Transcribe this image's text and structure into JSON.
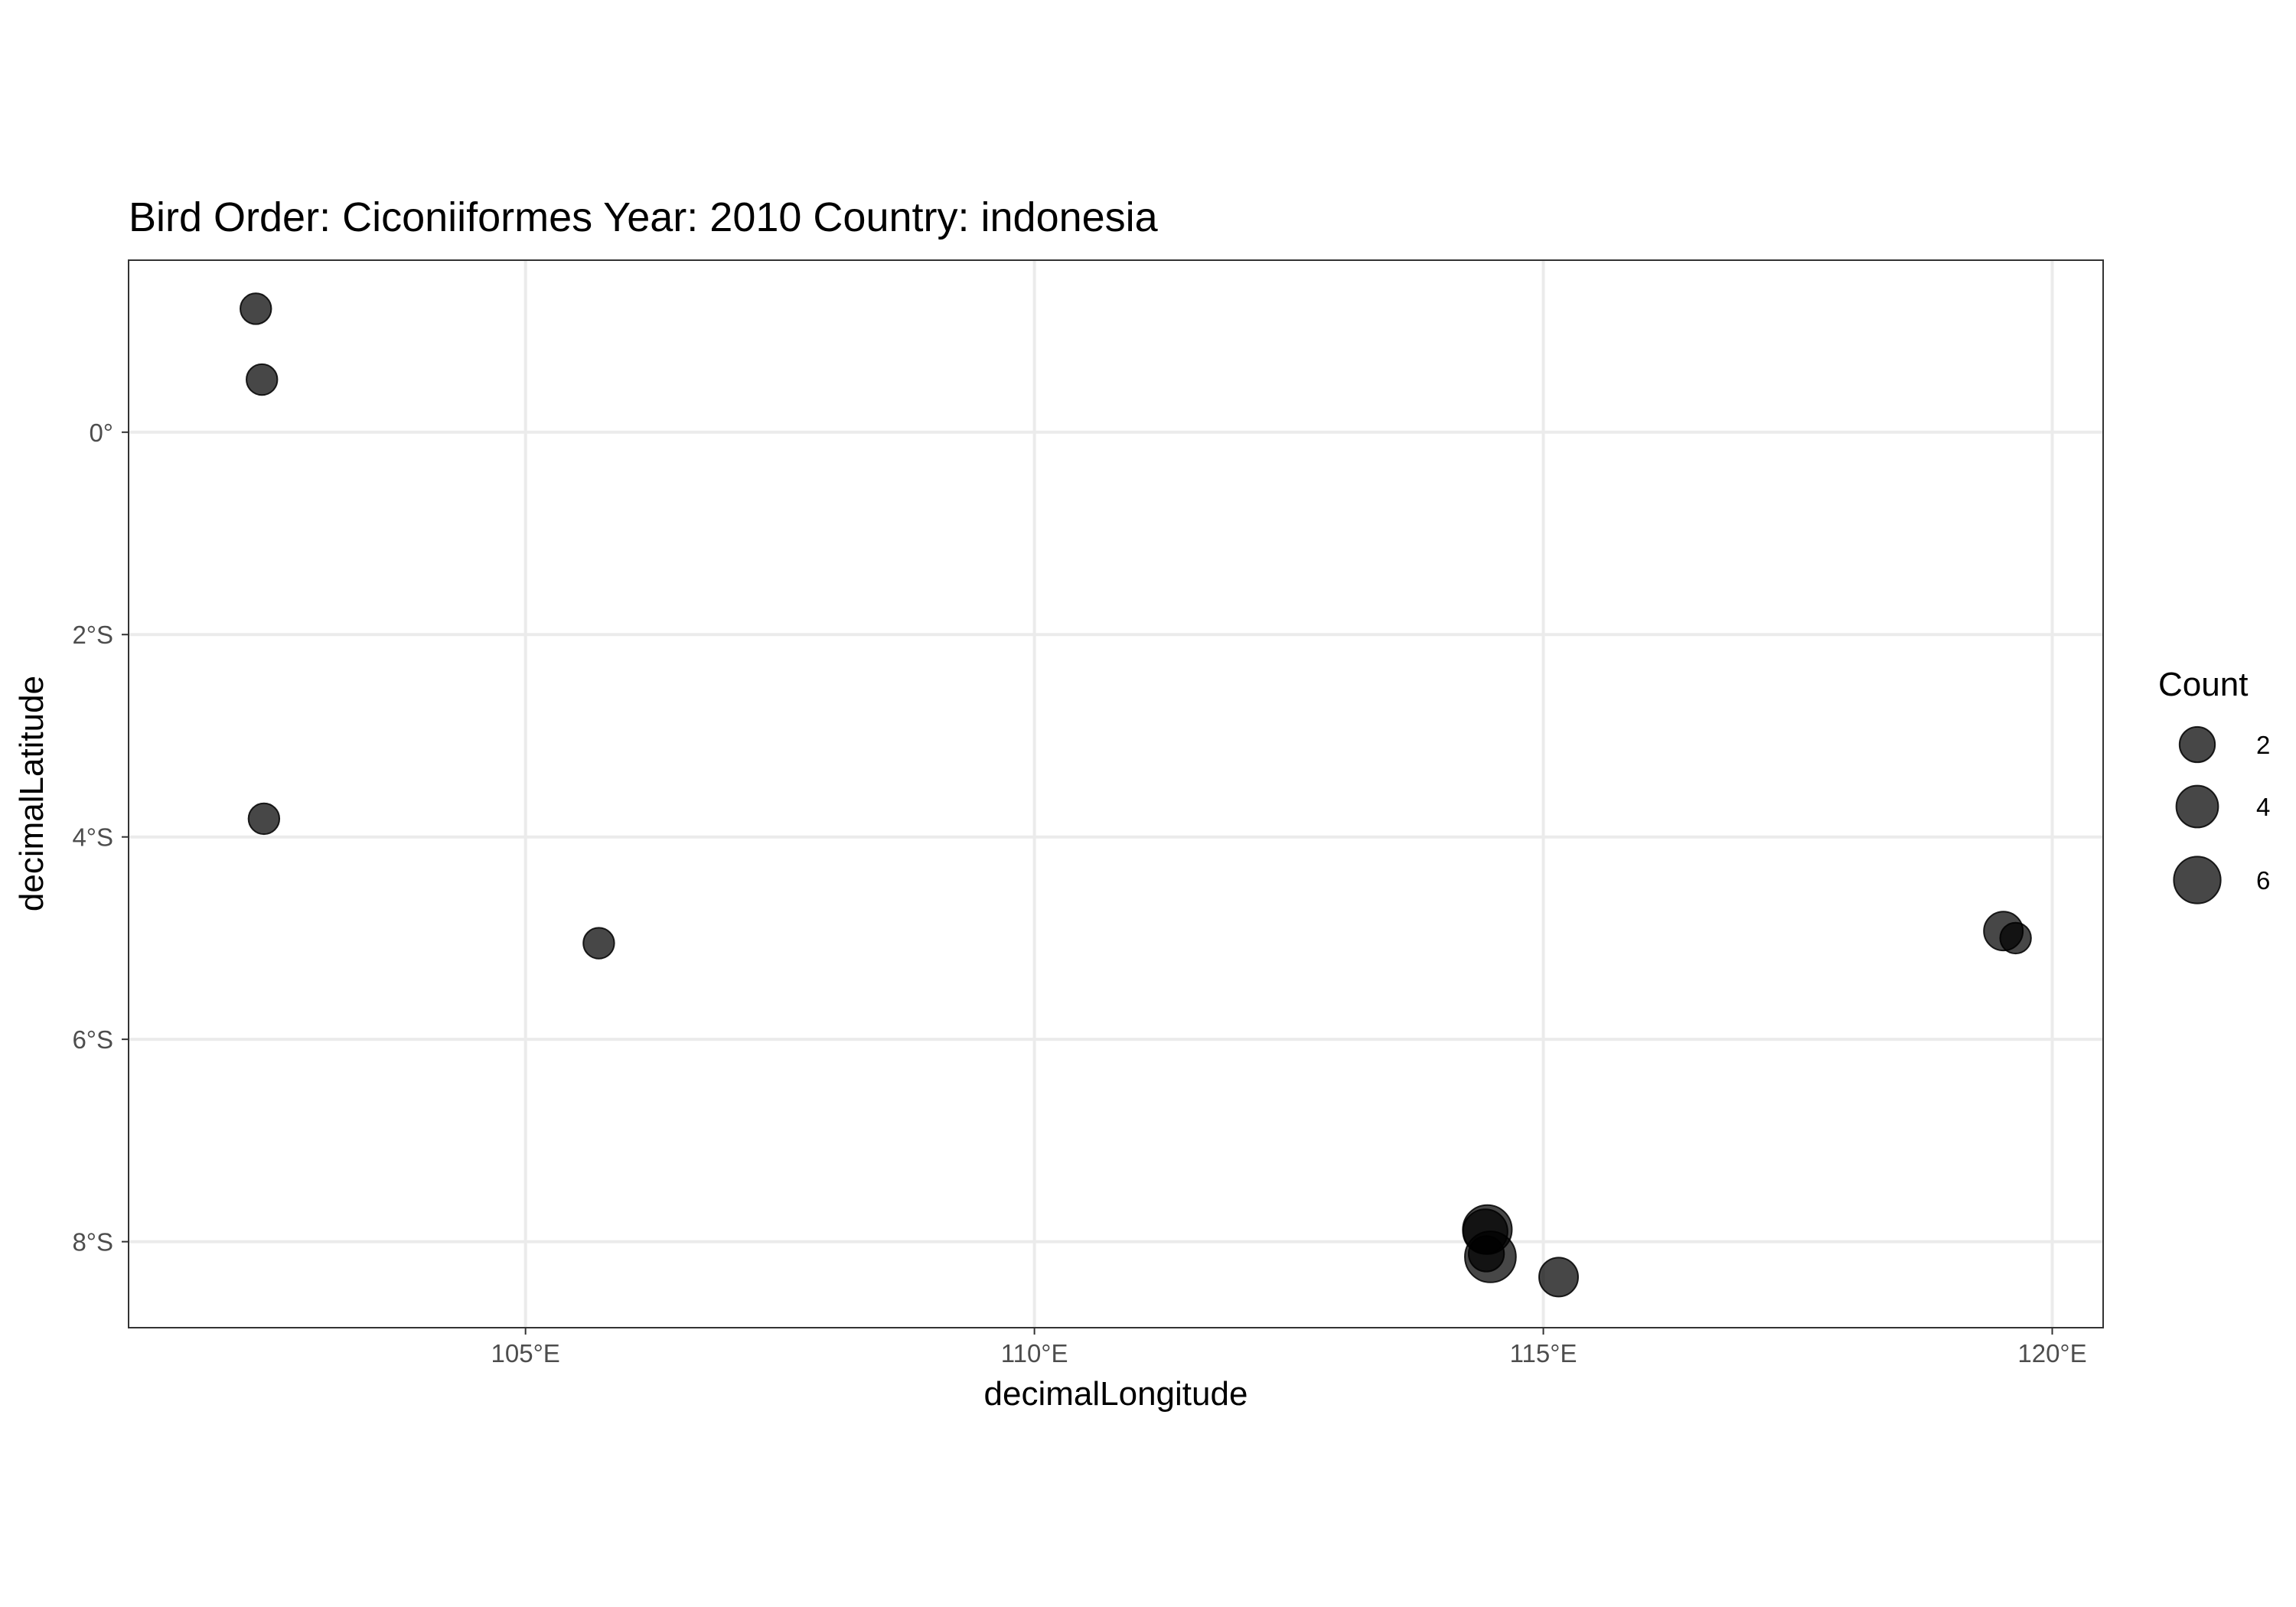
{
  "chart_data": {
    "type": "scatter",
    "title": "Bird Order: Ciconiiformes Year: 2010 Country: indonesia",
    "xlabel": "decimalLongitude",
    "ylabel": "decimalLatitude",
    "xlim": [
      101.1,
      120.5
    ],
    "ylim": [
      -8.85,
      1.7
    ],
    "x_ticks": [
      {
        "value": 105,
        "label": "105°E"
      },
      {
        "value": 110,
        "label": "110°E"
      },
      {
        "value": 115,
        "label": "115°E"
      },
      {
        "value": 120,
        "label": "120°E"
      }
    ],
    "y_ticks": [
      {
        "value": 0,
        "label": "0°"
      },
      {
        "value": -2,
        "label": "2°S"
      },
      {
        "value": -4,
        "label": "4°S"
      },
      {
        "value": -6,
        "label": "6°S"
      },
      {
        "value": -8,
        "label": "8°S"
      }
    ],
    "grid": true,
    "point_color": "#000000",
    "point_alpha": 0.72,
    "points": [
      {
        "x": 102.35,
        "y": 1.22,
        "count": 1
      },
      {
        "x": 102.41,
        "y": 0.52,
        "count": 1
      },
      {
        "x": 102.43,
        "y": -3.82,
        "count": 1
      },
      {
        "x": 105.72,
        "y": -5.05,
        "count": 1
      },
      {
        "x": 114.48,
        "y": -8.15,
        "count": 8
      },
      {
        "x": 114.45,
        "y": -7.88,
        "count": 7
      },
      {
        "x": 114.43,
        "y": -7.9,
        "count": 5
      },
      {
        "x": 114.44,
        "y": -8.12,
        "count": 2
      },
      {
        "x": 115.15,
        "y": -8.35,
        "count": 3
      },
      {
        "x": 119.52,
        "y": -4.93,
        "count": 3
      },
      {
        "x": 119.64,
        "y": -5.0,
        "count": 1
      }
    ],
    "legend": {
      "title": "Count",
      "placement": "right",
      "entries": [
        {
          "value": 2,
          "label": "2"
        },
        {
          "value": 4,
          "label": "4"
        },
        {
          "value": 6,
          "label": "6"
        }
      ]
    }
  }
}
